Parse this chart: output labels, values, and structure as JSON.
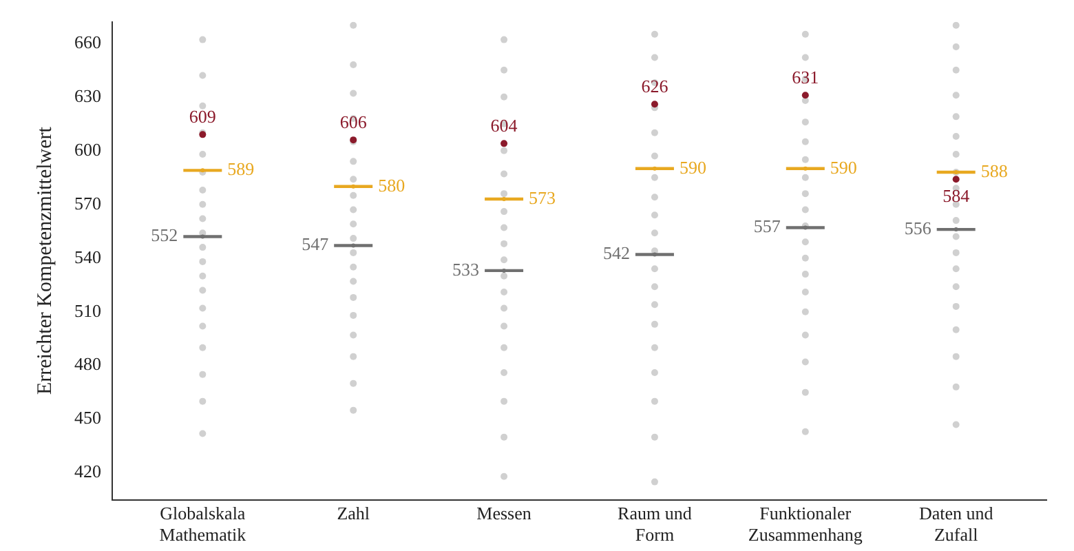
{
  "chart_data": {
    "type": "scatter",
    "ylabel": "Erreichter Kompetenzmittelwert",
    "categories": [
      "Globalskala\nMathematik",
      "Zahl",
      "Messen",
      "Raum und\nForm",
      "Funktionaler\nZusammenhang",
      "Daten und\nZufall"
    ],
    "ylim": [
      405,
      672
    ],
    "yticks": [
      420,
      450,
      480,
      510,
      540,
      570,
      600,
      630,
      660
    ],
    "grid": false,
    "legend": false,
    "series": [
      {
        "color": "#d0d0d0",
        "marker": "circle",
        "x": [
          "Globalskala\nMathematik",
          "Globalskala\nMathematik",
          "Globalskala\nMathematik",
          "Globalskala\nMathematik",
          "Globalskala\nMathematik",
          "Globalskala\nMathematik",
          "Globalskala\nMathematik",
          "Globalskala\nMathematik",
          "Globalskala\nMathematik",
          "Globalskala\nMathematik",
          "Globalskala\nMathematik",
          "Globalskala\nMathematik",
          "Globalskala\nMathematik",
          "Globalskala\nMathematik",
          "Globalskala\nMathematik",
          "Globalskala\nMathematik",
          "Globalskala\nMathematik",
          "Globalskala\nMathematik",
          "Globalskala\nMathematik",
          "Globalskala\nMathematik",
          "Zahl",
          "Zahl",
          "Zahl",
          "Zahl",
          "Zahl",
          "Zahl",
          "Zahl",
          "Zahl",
          "Zahl",
          "Zahl",
          "Zahl",
          "Zahl",
          "Zahl",
          "Zahl",
          "Zahl",
          "Zahl",
          "Zahl",
          "Zahl",
          "Zahl",
          "Zahl",
          "Messen",
          "Messen",
          "Messen",
          "Messen",
          "Messen",
          "Messen",
          "Messen",
          "Messen",
          "Messen",
          "Messen",
          "Messen",
          "Messen",
          "Messen",
          "Messen",
          "Messen",
          "Messen",
          "Messen",
          "Messen",
          "Messen",
          "Messen",
          "Raum und\nForm",
          "Raum und\nForm",
          "Raum und\nForm",
          "Raum und\nForm",
          "Raum und\nForm",
          "Raum und\nForm",
          "Raum und\nForm",
          "Raum und\nForm",
          "Raum und\nForm",
          "Raum und\nForm",
          "Raum und\nForm",
          "Raum und\nForm",
          "Raum und\nForm",
          "Raum und\nForm",
          "Raum und\nForm",
          "Raum und\nForm",
          "Raum und\nForm",
          "Raum und\nForm",
          "Raum und\nForm",
          "Raum und\nForm",
          "Funktionaler\nZusammenhang",
          "Funktionaler\nZusammenhang",
          "Funktionaler\nZusammenhang",
          "Funktionaler\nZusammenhang",
          "Funktionaler\nZusammenhang",
          "Funktionaler\nZusammenhang",
          "Funktionaler\nZusammenhang",
          "Funktionaler\nZusammenhang",
          "Funktionaler\nZusammenhang",
          "Funktionaler\nZusammenhang",
          "Funktionaler\nZusammenhang",
          "Funktionaler\nZusammenhang",
          "Funktionaler\nZusammenhang",
          "Funktionaler\nZusammenhang",
          "Funktionaler\nZusammenhang",
          "Funktionaler\nZusammenhang",
          "Funktionaler\nZusammenhang",
          "Funktionaler\nZusammenhang",
          "Funktionaler\nZusammenhang",
          "Funktionaler\nZusammenhang",
          "Daten und\nZufall",
          "Daten und\nZufall",
          "Daten und\nZufall",
          "Daten und\nZufall",
          "Daten und\nZufall",
          "Daten und\nZufall",
          "Daten und\nZufall",
          "Daten und\nZufall",
          "Daten und\nZufall",
          "Daten und\nZufall",
          "Daten und\nZufall",
          "Daten und\nZufall",
          "Daten und\nZufall",
          "Daten und\nZufall",
          "Daten und\nZufall",
          "Daten und\nZufall",
          "Daten und\nZufall",
          "Daten und\nZufall",
          "Daten und\nZufall",
          "Daten und\nZufall"
        ],
        "values": [
          442,
          460,
          475,
          490,
          502,
          512,
          522,
          530,
          538,
          546,
          554,
          562,
          570,
          578,
          588,
          598,
          610,
          625,
          642,
          662,
          455,
          470,
          485,
          497,
          508,
          518,
          527,
          535,
          543,
          551,
          559,
          567,
          575,
          584,
          594,
          605,
          618,
          632,
          648,
          670,
          418,
          440,
          460,
          476,
          490,
          502,
          512,
          521,
          530,
          539,
          548,
          557,
          566,
          576,
          587,
          600,
          615,
          630,
          645,
          662,
          415,
          440,
          460,
          476,
          490,
          503,
          514,
          524,
          534,
          544,
          554,
          564,
          574,
          585,
          597,
          610,
          624,
          638,
          652,
          665,
          443,
          465,
          482,
          497,
          510,
          521,
          531,
          540,
          549,
          558,
          567,
          576,
          585,
          595,
          605,
          616,
          628,
          640,
          652,
          665,
          447,
          468,
          485,
          500,
          513,
          524,
          534,
          543,
          552,
          561,
          570,
          579,
          588,
          598,
          608,
          619,
          631,
          645,
          658,
          670
        ]
      },
      {
        "color": "#707070",
        "values": [
          552,
          547,
          533,
          542,
          557,
          556
        ],
        "value_labels": [
          "552",
          "547",
          "533",
          "542",
          "557",
          "556"
        ]
      },
      {
        "color": "#e8a820",
        "values": [
          589,
          580,
          573,
          590,
          590,
          588
        ],
        "value_labels": [
          "589",
          "580",
          "573",
          "590",
          "590",
          "588"
        ]
      },
      {
        "color": "#8b1a2b",
        "marker": "circle",
        "values": [
          609,
          606,
          604,
          626,
          631,
          584
        ],
        "value_labels": [
          "609",
          "606",
          "604",
          "626",
          "631",
          "584"
        ]
      }
    ]
  }
}
